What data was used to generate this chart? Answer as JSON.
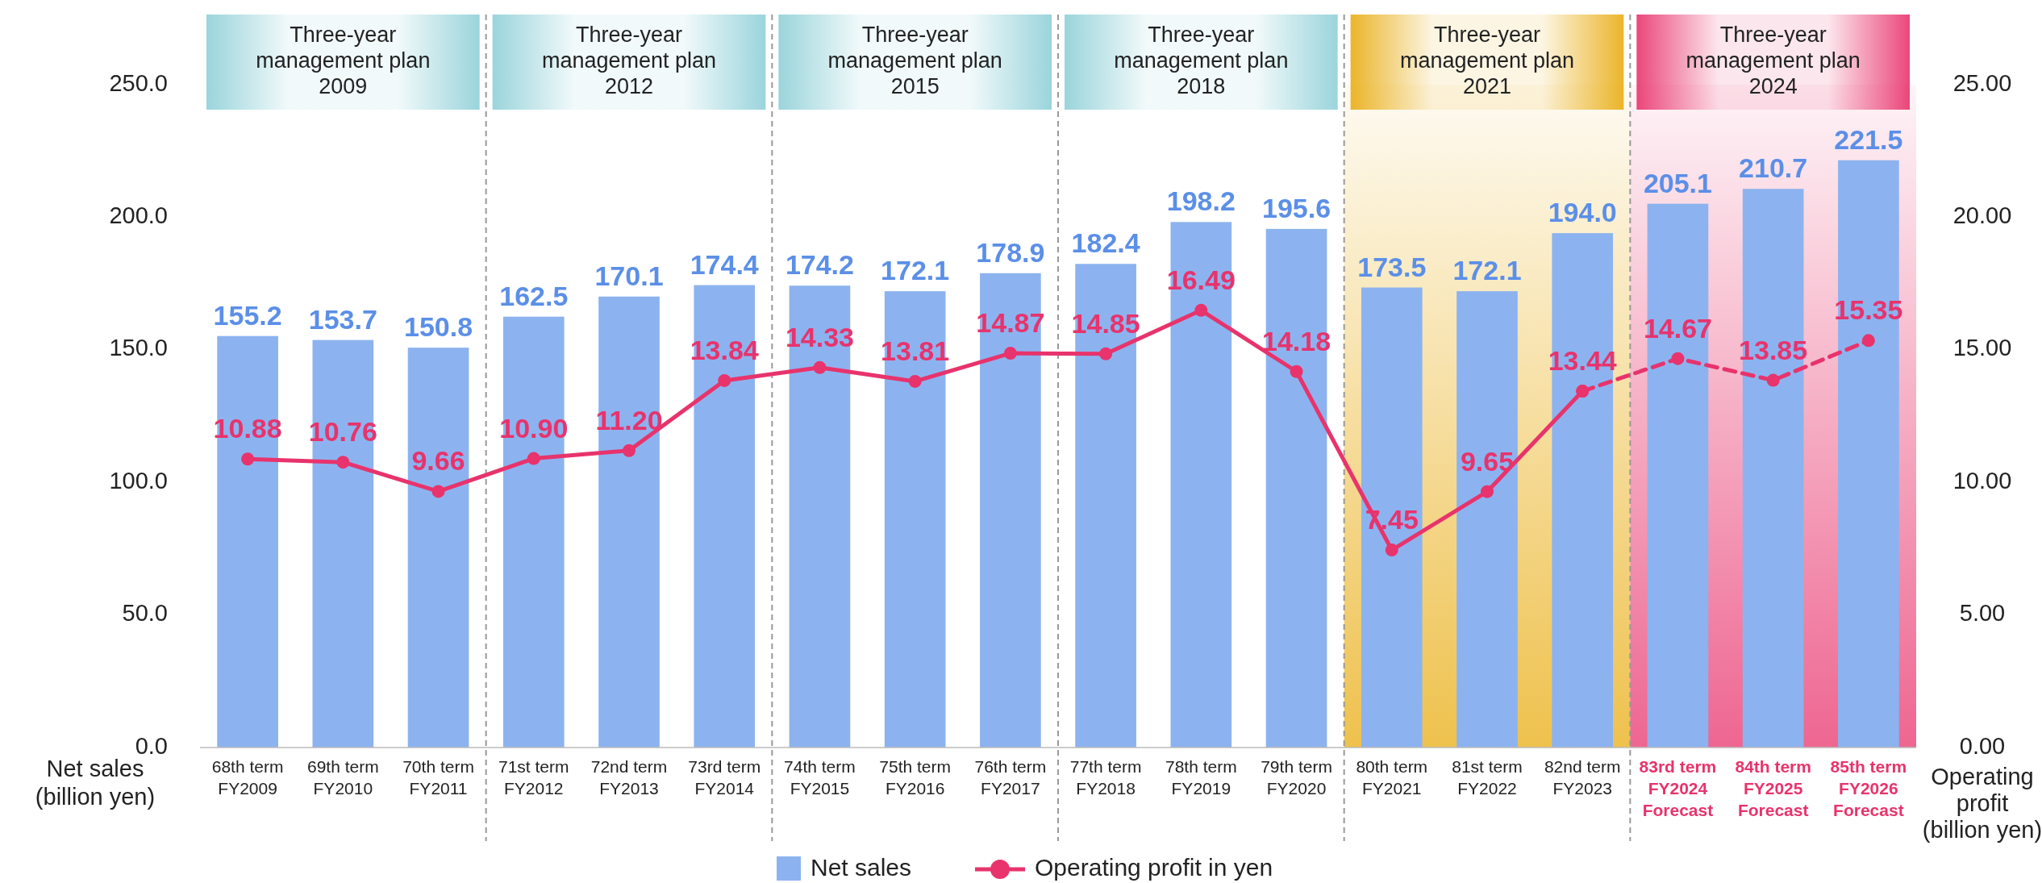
{
  "chart_data": {
    "type": "bar",
    "categories": [
      "68th term\nFY2009",
      "69th term\nFY2010",
      "70th term\nFY2011",
      "71st term\nFY2012",
      "72nd term\nFY2013",
      "73rd term\nFY2014",
      "74th term\nFY2015",
      "75th term\nFY2016",
      "76th term\nFY2017",
      "77th term\nFY2018",
      "78th term\nFY2019",
      "79th term\nFY2020",
      "80th term\nFY2021",
      "81st term\nFY2022",
      "82nd term\nFY2023",
      "83rd term\nFY2024\nForecast",
      "84th term\nFY2025\nForecast",
      "85th term\nFY2026\nForecast"
    ],
    "series": [
      {
        "name": "Net sales",
        "color": "#8cb3ef",
        "values": [
          155.2,
          153.7,
          150.8,
          162.5,
          170.1,
          174.4,
          174.2,
          172.1,
          178.9,
          182.4,
          198.2,
          195.6,
          173.5,
          172.1,
          194.0,
          205.1,
          210.7,
          221.5
        ],
        "value_labels": [
          "155.2",
          "153.7",
          "150.8",
          "162.5",
          "170.1",
          "174.4",
          "174.2",
          "172.1",
          "178.9",
          "182.4",
          "198.2",
          "195.6",
          "173.5",
          "172.1",
          "194.0",
          "205.1",
          "210.7",
          "221.5"
        ]
      },
      {
        "name": "Operating profit in yen",
        "type": "line",
        "axis": "y2",
        "color": "#e8336c",
        "marker": "circle",
        "line_style": "solid",
        "values": [
          10.88,
          10.76,
          9.66,
          10.9,
          11.2,
          13.84,
          14.33,
          13.81,
          14.87,
          14.85,
          16.49,
          14.18,
          7.45,
          9.65,
          13.44,
          null,
          null,
          null
        ],
        "value_labels": [
          "10.88",
          "10.76",
          "9.66",
          "10.90",
          "11.20",
          "13.84",
          "14.33",
          "13.81",
          "14.87",
          "14.85",
          "16.49",
          "14.18",
          "7.45",
          "9.65",
          "13.44",
          null,
          null,
          null
        ]
      },
      {
        "type": "line",
        "axis": "y2",
        "color": "#e8336c",
        "marker": "circle",
        "line_style": "dashed",
        "values": [
          null,
          null,
          null,
          null,
          null,
          null,
          null,
          null,
          null,
          null,
          null,
          null,
          null,
          null,
          13.44,
          14.67,
          13.85,
          15.35
        ],
        "value_labels": [
          null,
          null,
          null,
          null,
          null,
          null,
          null,
          null,
          null,
          null,
          null,
          null,
          null,
          null,
          null,
          "14.67",
          "13.85",
          "15.35"
        ]
      }
    ],
    "ylim": [
      0,
      250
    ],
    "yticks": [
      {
        "value": 0,
        "label": "0.0"
      },
      {
        "value": 50,
        "label": "50.0"
      },
      {
        "value": 100,
        "label": "100.0"
      },
      {
        "value": 150,
        "label": "150.0"
      },
      {
        "value": 200,
        "label": "200.0"
      },
      {
        "value": 250,
        "label": "250.0"
      }
    ],
    "y2lim": [
      0,
      25
    ],
    "y2ticks": [
      {
        "value": 0,
        "label": "0.00"
      },
      {
        "value": 5,
        "label": "5.00"
      },
      {
        "value": 10,
        "label": "10.00"
      },
      {
        "value": 15,
        "label": "15.00"
      },
      {
        "value": 20,
        "label": "20.00"
      },
      {
        "value": 25,
        "label": "25.00"
      }
    ],
    "ylabel": "Net sales\n(billion yen)",
    "y2label": "Operating\nprofit\n(billion yen)",
    "bands": [
      {
        "axis": "x",
        "from": "68th term\nFY2009",
        "to": "70th term\nFY2011",
        "label": "Three-year\nmanagement plan\n2009"
      },
      {
        "axis": "x",
        "from": "71st term\nFY2012",
        "to": "73rd term\nFY2014",
        "label": "Three-year\nmanagement plan\n2012"
      },
      {
        "axis": "x",
        "from": "74th term\nFY2015",
        "to": "76th term\nFY2017",
        "label": "Three-year\nmanagement plan\n2015"
      },
      {
        "axis": "x",
        "from": "77th term\nFY2018",
        "to": "79th term\nFY2020",
        "label": "Three-year\nmanagement plan\n2018"
      },
      {
        "axis": "x",
        "from": "80th term\nFY2021",
        "to": "82nd term\nFY2023",
        "label": "Three-year\nmanagement plan\n2021",
        "color": "#e9ad12"
      },
      {
        "axis": "x",
        "from": "83rd term\nFY2024\nForecast",
        "to": "85th term\nFY2026\nForecast",
        "label": "Three-year\nmanagement plan\n2024",
        "color": "#e8336c"
      }
    ],
    "legend": "bottom"
  }
}
